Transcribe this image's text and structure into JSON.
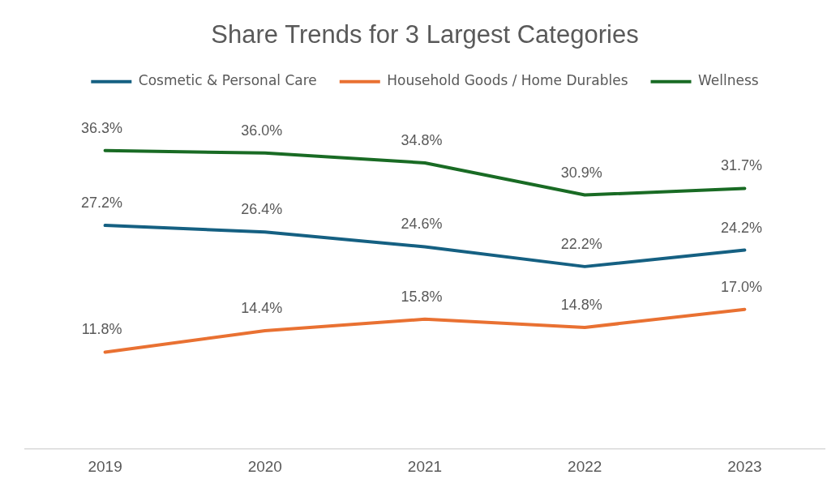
{
  "chart_data": {
    "type": "line",
    "title": "Share Trends for 3 Largest Categories",
    "categories": [
      "2019",
      "2020",
      "2021",
      "2022",
      "2023"
    ],
    "series": [
      {
        "name": "Cosmetic & Personal Care",
        "color": "#156082",
        "values": [
          27.2,
          26.4,
          24.6,
          22.2,
          24.2
        ],
        "value_labels": [
          "27.2%",
          "26.4%",
          "24.6%",
          "22.2%",
          "24.2%"
        ]
      },
      {
        "name": "Household Goods / Home Durables",
        "color": "#e97132",
        "values": [
          11.8,
          14.4,
          15.8,
          14.8,
          17.0
        ],
        "value_labels": [
          "11.8%",
          "14.4%",
          "15.8%",
          "14.8%",
          "17.0%"
        ]
      },
      {
        "name": "Wellness",
        "color": "#196b24",
        "values": [
          36.3,
          36.0,
          34.8,
          30.9,
          31.7
        ],
        "value_labels": [
          "36.3%",
          "36.0%",
          "34.8%",
          "30.9%",
          "31.7%"
        ]
      }
    ],
    "tick_labels": "x",
    "legend": "top"
  }
}
